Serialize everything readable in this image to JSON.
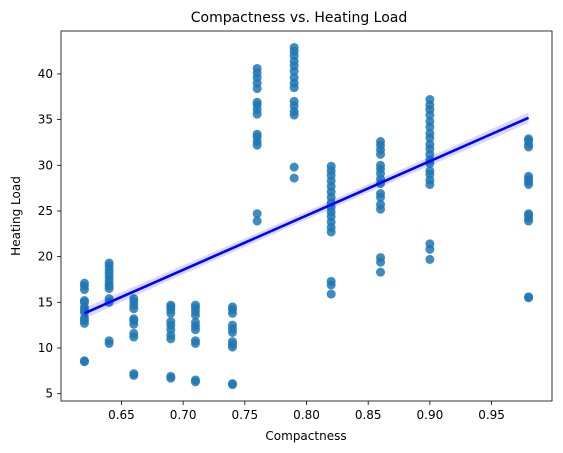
{
  "chart_data": {
    "type": "scatter",
    "title": "Compactness vs. Heating Load",
    "xlabel": "Compactness",
    "ylabel": "Heating Load",
    "xlim": [
      0.601,
      0.999
    ],
    "ylim": [
      4.2,
      44.7
    ],
    "xticks": [
      0.65,
      0.7,
      0.75,
      0.8,
      0.85,
      0.9,
      0.95
    ],
    "xtick_labels": [
      "0.65",
      "0.70",
      "0.75",
      "0.80",
      "0.85",
      "0.90",
      "0.95"
    ],
    "yticks": [
      5,
      10,
      15,
      20,
      25,
      30,
      35,
      40
    ],
    "ytick_labels": [
      "5",
      "10",
      "15",
      "20",
      "25",
      "30",
      "35",
      "40"
    ],
    "grid": false,
    "point_color": "#1f77b4",
    "regression": {
      "slope": 59.44,
      "intercept": -23.05,
      "x_range": [
        0.62,
        0.98
      ],
      "color": "#0000ff",
      "ci_color": "#0000ff"
    },
    "points": [
      {
        "x": 0.62,
        "y": 8.5
      },
      {
        "x": 0.62,
        "y": 8.6
      },
      {
        "x": 0.62,
        "y": 12.7
      },
      {
        "x": 0.62,
        "y": 13.0
      },
      {
        "x": 0.62,
        "y": 13.3
      },
      {
        "x": 0.62,
        "y": 13.9
      },
      {
        "x": 0.62,
        "y": 14.2
      },
      {
        "x": 0.62,
        "y": 14.5
      },
      {
        "x": 0.62,
        "y": 15.0
      },
      {
        "x": 0.62,
        "y": 15.2
      },
      {
        "x": 0.62,
        "y": 16.4
      },
      {
        "x": 0.62,
        "y": 16.8
      },
      {
        "x": 0.62,
        "y": 17.1
      },
      {
        "x": 0.64,
        "y": 10.5
      },
      {
        "x": 0.64,
        "y": 10.8
      },
      {
        "x": 0.64,
        "y": 15.0
      },
      {
        "x": 0.64,
        "y": 15.4
      },
      {
        "x": 0.64,
        "y": 16.5
      },
      {
        "x": 0.64,
        "y": 16.8
      },
      {
        "x": 0.64,
        "y": 17.0
      },
      {
        "x": 0.64,
        "y": 17.4
      },
      {
        "x": 0.64,
        "y": 17.8
      },
      {
        "x": 0.64,
        "y": 18.2
      },
      {
        "x": 0.64,
        "y": 18.6
      },
      {
        "x": 0.64,
        "y": 19.0
      },
      {
        "x": 0.64,
        "y": 19.3
      },
      {
        "x": 0.66,
        "y": 7.0
      },
      {
        "x": 0.66,
        "y": 7.2
      },
      {
        "x": 0.66,
        "y": 11.2
      },
      {
        "x": 0.66,
        "y": 11.6
      },
      {
        "x": 0.66,
        "y": 12.6
      },
      {
        "x": 0.66,
        "y": 13.0
      },
      {
        "x": 0.66,
        "y": 13.2
      },
      {
        "x": 0.66,
        "y": 14.3
      },
      {
        "x": 0.66,
        "y": 14.7
      },
      {
        "x": 0.66,
        "y": 15.1
      },
      {
        "x": 0.66,
        "y": 15.4
      },
      {
        "x": 0.69,
        "y": 6.7
      },
      {
        "x": 0.69,
        "y": 6.9
      },
      {
        "x": 0.69,
        "y": 11.0
      },
      {
        "x": 0.69,
        "y": 11.4
      },
      {
        "x": 0.69,
        "y": 12.0
      },
      {
        "x": 0.69,
        "y": 12.5
      },
      {
        "x": 0.69,
        "y": 12.9
      },
      {
        "x": 0.69,
        "y": 13.8
      },
      {
        "x": 0.69,
        "y": 14.2
      },
      {
        "x": 0.69,
        "y": 14.5
      },
      {
        "x": 0.69,
        "y": 14.7
      },
      {
        "x": 0.71,
        "y": 6.3
      },
      {
        "x": 0.71,
        "y": 6.5
      },
      {
        "x": 0.71,
        "y": 10.5
      },
      {
        "x": 0.71,
        "y": 10.8
      },
      {
        "x": 0.71,
        "y": 12.0
      },
      {
        "x": 0.71,
        "y": 12.4
      },
      {
        "x": 0.71,
        "y": 12.8
      },
      {
        "x": 0.71,
        "y": 13.6
      },
      {
        "x": 0.71,
        "y": 14.0
      },
      {
        "x": 0.71,
        "y": 14.4
      },
      {
        "x": 0.71,
        "y": 14.7
      },
      {
        "x": 0.74,
        "y": 6.0
      },
      {
        "x": 0.74,
        "y": 6.1
      },
      {
        "x": 0.74,
        "y": 10.1
      },
      {
        "x": 0.74,
        "y": 10.4
      },
      {
        "x": 0.74,
        "y": 10.7
      },
      {
        "x": 0.74,
        "y": 11.7
      },
      {
        "x": 0.74,
        "y": 12.1
      },
      {
        "x": 0.74,
        "y": 12.5
      },
      {
        "x": 0.74,
        "y": 13.8
      },
      {
        "x": 0.74,
        "y": 14.2
      },
      {
        "x": 0.74,
        "y": 14.5
      },
      {
        "x": 0.76,
        "y": 23.9
      },
      {
        "x": 0.76,
        "y": 24.7
      },
      {
        "x": 0.76,
        "y": 32.2
      },
      {
        "x": 0.76,
        "y": 32.6
      },
      {
        "x": 0.76,
        "y": 33.1
      },
      {
        "x": 0.76,
        "y": 33.4
      },
      {
        "x": 0.76,
        "y": 35.6
      },
      {
        "x": 0.76,
        "y": 36.1
      },
      {
        "x": 0.76,
        "y": 36.6
      },
      {
        "x": 0.76,
        "y": 36.9
      },
      {
        "x": 0.76,
        "y": 38.4
      },
      {
        "x": 0.76,
        "y": 39.0
      },
      {
        "x": 0.76,
        "y": 39.6
      },
      {
        "x": 0.76,
        "y": 40.1
      },
      {
        "x": 0.76,
        "y": 40.6
      },
      {
        "x": 0.79,
        "y": 28.6
      },
      {
        "x": 0.79,
        "y": 29.8
      },
      {
        "x": 0.79,
        "y": 35.5
      },
      {
        "x": 0.79,
        "y": 35.9
      },
      {
        "x": 0.79,
        "y": 36.5
      },
      {
        "x": 0.79,
        "y": 37.0
      },
      {
        "x": 0.79,
        "y": 38.5
      },
      {
        "x": 0.79,
        "y": 39.0
      },
      {
        "x": 0.79,
        "y": 39.6
      },
      {
        "x": 0.79,
        "y": 40.3
      },
      {
        "x": 0.79,
        "y": 40.9
      },
      {
        "x": 0.79,
        "y": 41.4
      },
      {
        "x": 0.79,
        "y": 42.0
      },
      {
        "x": 0.79,
        "y": 42.5
      },
      {
        "x": 0.79,
        "y": 42.9
      },
      {
        "x": 0.82,
        "y": 15.9
      },
      {
        "x": 0.82,
        "y": 16.9
      },
      {
        "x": 0.82,
        "y": 17.3
      },
      {
        "x": 0.82,
        "y": 22.7
      },
      {
        "x": 0.82,
        "y": 23.2
      },
      {
        "x": 0.82,
        "y": 23.8
      },
      {
        "x": 0.82,
        "y": 24.4
      },
      {
        "x": 0.82,
        "y": 24.9
      },
      {
        "x": 0.82,
        "y": 25.4
      },
      {
        "x": 0.82,
        "y": 25.9
      },
      {
        "x": 0.82,
        "y": 26.5
      },
      {
        "x": 0.82,
        "y": 27.1
      },
      {
        "x": 0.82,
        "y": 27.7
      },
      {
        "x": 0.82,
        "y": 28.3
      },
      {
        "x": 0.82,
        "y": 28.9
      },
      {
        "x": 0.82,
        "y": 29.4
      },
      {
        "x": 0.82,
        "y": 29.9
      },
      {
        "x": 0.86,
        "y": 18.3
      },
      {
        "x": 0.86,
        "y": 19.4
      },
      {
        "x": 0.86,
        "y": 19.9
      },
      {
        "x": 0.86,
        "y": 25.2
      },
      {
        "x": 0.86,
        "y": 25.7
      },
      {
        "x": 0.86,
        "y": 26.5
      },
      {
        "x": 0.86,
        "y": 26.9
      },
      {
        "x": 0.86,
        "y": 28.0
      },
      {
        "x": 0.86,
        "y": 28.5
      },
      {
        "x": 0.86,
        "y": 29.1
      },
      {
        "x": 0.86,
        "y": 29.6
      },
      {
        "x": 0.86,
        "y": 30.0
      },
      {
        "x": 0.86,
        "y": 31.2
      },
      {
        "x": 0.86,
        "y": 31.7
      },
      {
        "x": 0.86,
        "y": 32.2
      },
      {
        "x": 0.86,
        "y": 32.6
      },
      {
        "x": 0.9,
        "y": 19.7
      },
      {
        "x": 0.9,
        "y": 20.8
      },
      {
        "x": 0.9,
        "y": 21.4
      },
      {
        "x": 0.9,
        "y": 27.9
      },
      {
        "x": 0.9,
        "y": 28.4
      },
      {
        "x": 0.9,
        "y": 29.0
      },
      {
        "x": 0.9,
        "y": 29.4
      },
      {
        "x": 0.9,
        "y": 30.2
      },
      {
        "x": 0.9,
        "y": 30.6
      },
      {
        "x": 0.9,
        "y": 31.2
      },
      {
        "x": 0.9,
        "y": 31.8
      },
      {
        "x": 0.9,
        "y": 32.3
      },
      {
        "x": 0.9,
        "y": 33.0
      },
      {
        "x": 0.9,
        "y": 33.5
      },
      {
        "x": 0.9,
        "y": 34.2
      },
      {
        "x": 0.9,
        "y": 34.8
      },
      {
        "x": 0.9,
        "y": 35.5
      },
      {
        "x": 0.9,
        "y": 36.1
      },
      {
        "x": 0.9,
        "y": 36.6
      },
      {
        "x": 0.9,
        "y": 37.2
      },
      {
        "x": 0.98,
        "y": 15.5
      },
      {
        "x": 0.98,
        "y": 15.6
      },
      {
        "x": 0.98,
        "y": 23.9
      },
      {
        "x": 0.98,
        "y": 24.2
      },
      {
        "x": 0.98,
        "y": 24.5
      },
      {
        "x": 0.98,
        "y": 24.7
      },
      {
        "x": 0.98,
        "y": 27.9
      },
      {
        "x": 0.98,
        "y": 28.2
      },
      {
        "x": 0.98,
        "y": 28.5
      },
      {
        "x": 0.98,
        "y": 28.8
      },
      {
        "x": 0.98,
        "y": 32.0
      },
      {
        "x": 0.98,
        "y": 32.3
      },
      {
        "x": 0.98,
        "y": 32.7
      },
      {
        "x": 0.98,
        "y": 32.9
      }
    ]
  }
}
